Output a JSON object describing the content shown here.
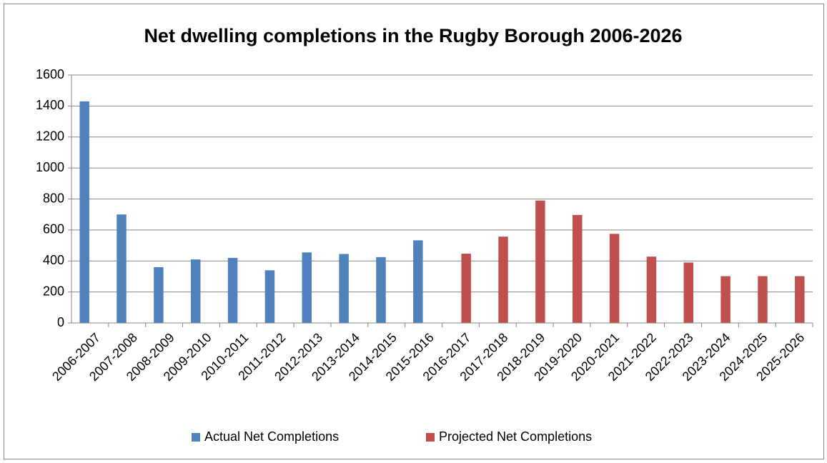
{
  "chart_data": {
    "type": "bar",
    "title": "Net dwelling completions in the Rugby Borough 2006-2026",
    "categories": [
      "2006-2007",
      "2007-2008",
      "2008-2009",
      "2009-2010",
      "2010-2011",
      "2011-2012",
      "2012-2013",
      "2013-2014",
      "2014-2015",
      "2015-2016",
      "2016-2017",
      "2017-2018",
      "2018-2019",
      "2019-2020",
      "2020-2021",
      "2021-2022",
      "2022-2023",
      "2023-2024",
      "2024-2025",
      "2025-2026"
    ],
    "series": [
      {
        "name": "Actual Net Completions",
        "color": "#4f81bd",
        "values": [
          1430,
          700,
          360,
          410,
          420,
          340,
          455,
          445,
          425,
          533,
          null,
          null,
          null,
          null,
          null,
          null,
          null,
          null,
          null,
          null
        ]
      },
      {
        "name": "Projected Net Completions",
        "color": "#c0504d",
        "values": [
          null,
          null,
          null,
          null,
          null,
          null,
          null,
          null,
          null,
          null,
          447,
          557,
          790,
          697,
          575,
          428,
          390,
          302,
          302,
          302
        ]
      }
    ],
    "ylim": [
      0,
      1600
    ],
    "yticks": [
      0,
      200,
      400,
      600,
      800,
      1000,
      1200,
      1400,
      1600
    ],
    "grid": true,
    "legend": "bottom"
  }
}
